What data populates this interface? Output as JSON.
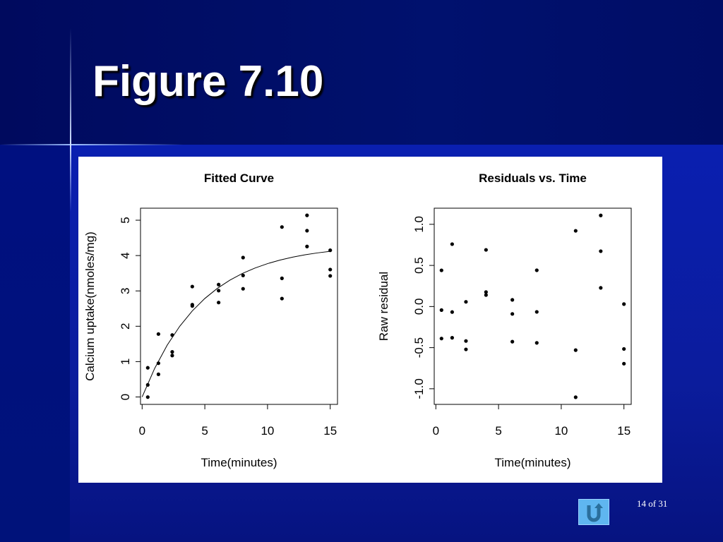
{
  "slide": {
    "title": "Figure 7.10",
    "page": "14 of 31"
  },
  "chart_data": [
    {
      "type": "scatter",
      "title": "Fitted Curve",
      "xlabel": "Time(minutes)",
      "ylabel": "Calcium uptake(nmoles/mg)",
      "color": "#000000",
      "x": [
        0.45,
        0.45,
        0.45,
        1.3,
        1.3,
        1.3,
        2.4,
        2.4,
        2.4,
        4,
        4,
        4,
        6.1,
        6.1,
        6.1,
        8.05,
        8.05,
        8.05,
        11.15,
        11.15,
        11.15,
        13.15,
        13.15,
        13.15,
        15,
        15,
        15
      ],
      "values": [
        0.342,
        -0.004,
        0.825,
        1.78,
        0.954,
        0.641,
        1.751,
        1.275,
        1.173,
        3.123,
        2.61,
        2.574,
        3.179,
        3.008,
        2.671,
        3.06,
        3.943,
        3.437,
        4.807,
        3.356,
        2.783,
        5.138,
        4.703,
        4.257,
        3.604,
        4.15,
        3.425
      ],
      "curve": {
        "x": [
          0,
          1,
          2,
          3,
          4,
          5,
          6,
          7,
          8,
          9,
          10,
          11,
          12,
          13,
          14,
          15
        ],
        "values": [
          0,
          0.809,
          1.467,
          2.001,
          2.434,
          2.786,
          3.073,
          3.305,
          3.494,
          3.647,
          3.772,
          3.873,
          3.955,
          4.022,
          4.076,
          4.12
        ]
      },
      "xlim": [
        -0.13,
        15.58
      ],
      "ylim": [
        -0.21,
        5.34
      ],
      "xticks": [
        0,
        5,
        10,
        15
      ],
      "yticks": [
        0,
        1,
        2,
        3,
        4,
        5
      ]
    },
    {
      "type": "scatter",
      "title": "Residuals vs. Time",
      "xlabel": "Time(minutes)",
      "ylabel": "Raw residual",
      "color": "#000000",
      "x": [
        0.45,
        0.45,
        0.45,
        1.3,
        1.3,
        1.3,
        2.4,
        2.4,
        2.4,
        4,
        4,
        4,
        6.1,
        6.1,
        6.1,
        8.05,
        8.05,
        8.05,
        11.15,
        11.15,
        11.15,
        13.15,
        13.15,
        13.15,
        15,
        15,
        15
      ],
      "values": [
        -0.043,
        -0.389,
        0.44,
        0.759,
        -0.067,
        -0.38,
        0.057,
        -0.419,
        -0.521,
        0.689,
        0.176,
        0.14,
        0.081,
        -0.09,
        -0.427,
        -0.442,
        0.441,
        -0.065,
        0.921,
        -0.53,
        -1.103,
        1.108,
        0.673,
        0.227,
        -0.516,
        0.03,
        -0.695
      ],
      "xlim": [
        -0.13,
        15.58
      ],
      "ylim": [
        -1.19,
        1.196
      ],
      "xticks": [
        0,
        5,
        10,
        15
      ],
      "yticks": [
        {
          "value": -1,
          "label": "-1.0"
        },
        -0.5,
        {
          "value": 0,
          "label": "0.0"
        },
        0.5,
        {
          "value": 1,
          "label": "1.0"
        }
      ]
    }
  ]
}
